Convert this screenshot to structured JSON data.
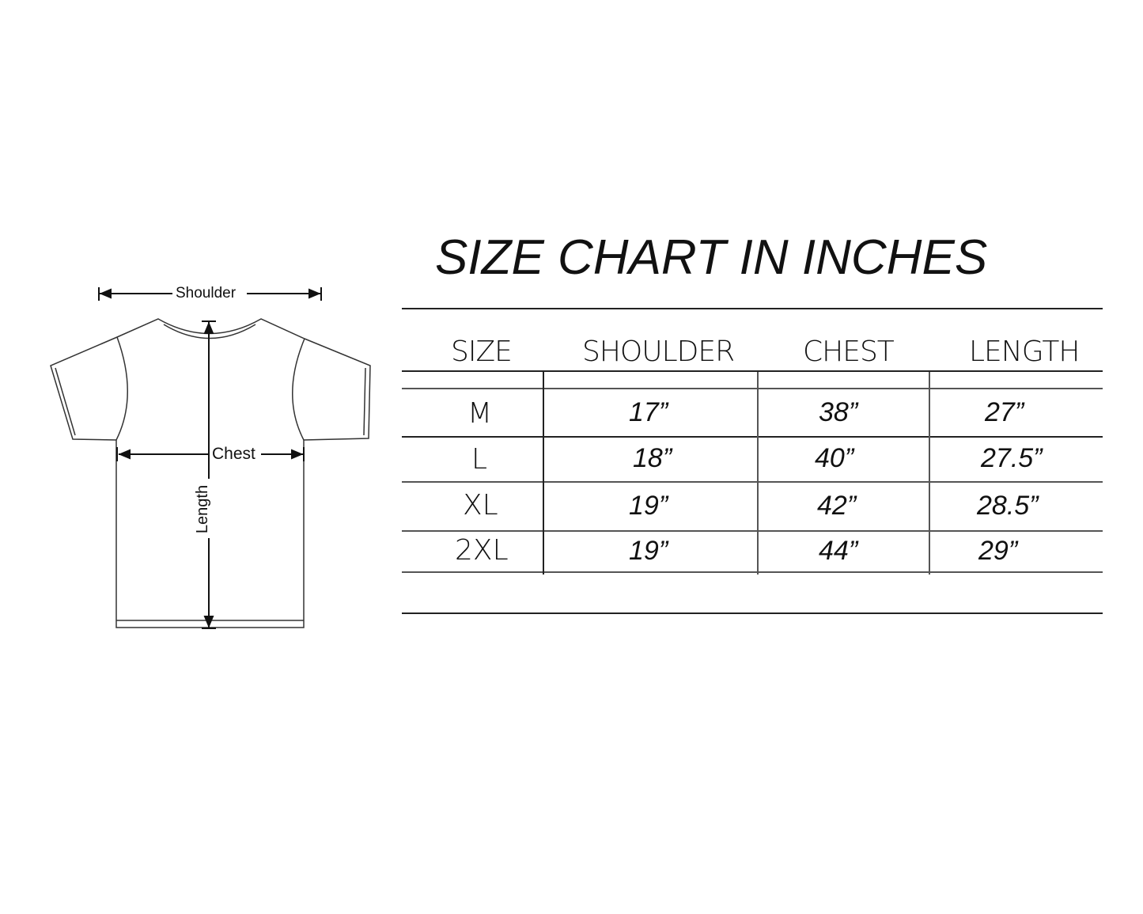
{
  "title": "SIZE CHART IN INCHES",
  "diagram": {
    "shoulder": "Shoulder",
    "chest": "Chest",
    "length": "Length"
  },
  "table": {
    "headers": [
      "SIZE",
      "SHOULDER",
      "CHEST",
      "LENGTH"
    ],
    "rows": [
      [
        "M",
        "17”",
        "38”",
        "27”"
      ],
      [
        "L",
        "18”",
        "40”",
        "27.5”"
      ],
      [
        "XL",
        "19”",
        "42”",
        "28.5”"
      ],
      [
        "2XL",
        "19”",
        "44”",
        "29”"
      ]
    ]
  }
}
